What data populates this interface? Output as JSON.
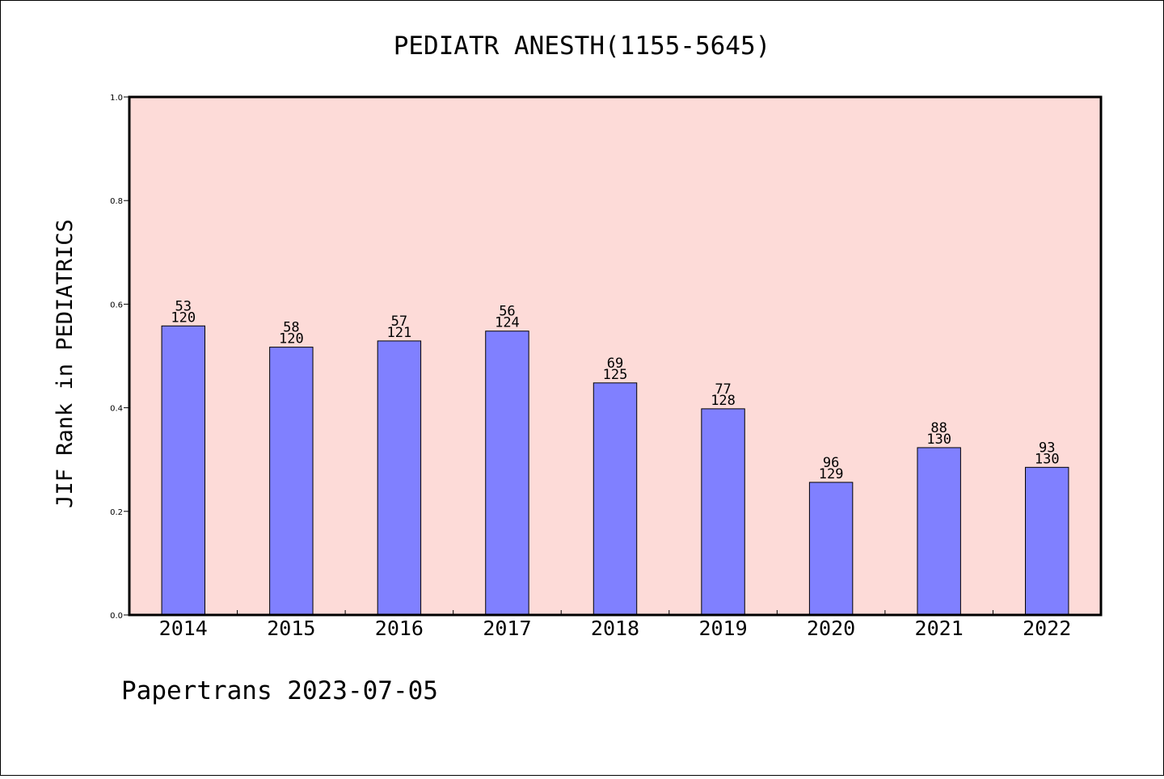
{
  "chart_data": {
    "type": "bar",
    "title": "PEDIATR ANESTH(1155-5645)",
    "ylabel": "JIF Rank in PEDIATRICS",
    "xlabel": "",
    "ylim": [
      0,
      1.0
    ],
    "yticks": [
      "0.0",
      "0.2",
      "0.4",
      "0.6",
      "0.8",
      "1.0"
    ],
    "categories": [
      "2014",
      "2015",
      "2016",
      "2017",
      "2018",
      "2019",
      "2020",
      "2021",
      "2022"
    ],
    "values": [
      0.558,
      0.517,
      0.529,
      0.548,
      0.448,
      0.398,
      0.256,
      0.323,
      0.285
    ],
    "rank": [
      "53",
      "58",
      "57",
      "56",
      "69",
      "77",
      "96",
      "88",
      "93"
    ],
    "total": [
      "120",
      "120",
      "121",
      "124",
      "125",
      "128",
      "129",
      "130",
      "130"
    ],
    "grid": false,
    "colors": {
      "plot_bg": "#fddbd8",
      "bar": "#8080ff",
      "bar_edge": "#000000"
    }
  },
  "footer": "Papertrans 2023-07-05"
}
